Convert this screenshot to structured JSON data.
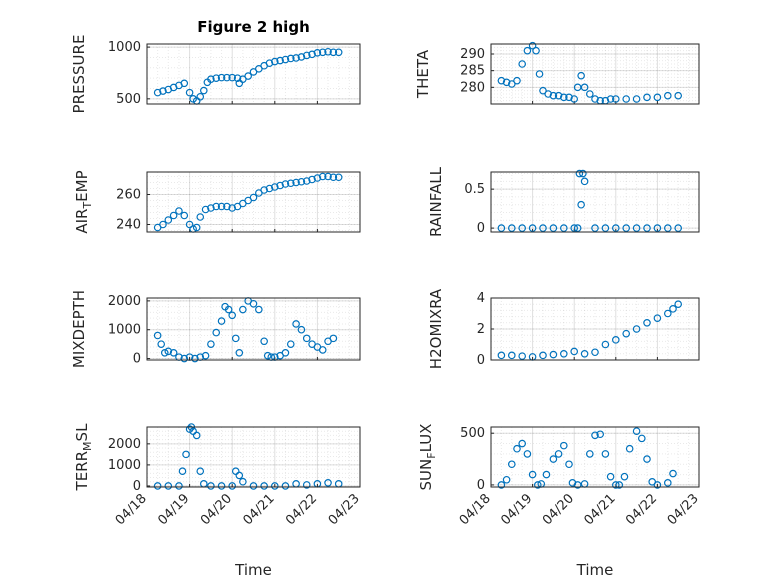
{
  "colors": {
    "marker": "#0072BD",
    "axis": "#262626"
  },
  "chart_data": [
    {
      "id": "pressure",
      "type": "scatter",
      "title": "Figure 2 high",
      "xlabel": "",
      "ylabel": "PRESSURE",
      "xlim": [
        "04/18",
        "04/23"
      ],
      "ylim": [
        450,
        1030
      ],
      "yticks": [
        500,
        1000
      ],
      "xticks": [],
      "grid": true,
      "x": [
        "04/18 06:00",
        "04/18 09:00",
        "04/18 12:00",
        "04/18 15:00",
        "04/18 18:00",
        "04/18 21:00",
        "04/19 00:00",
        "04/19 02:00",
        "04/19 04:00",
        "04/19 06:00",
        "04/19 08:00",
        "04/19 10:00",
        "04/19 12:00",
        "04/19 15:00",
        "04/19 18:00",
        "04/19 21:00",
        "04/20 00:00",
        "04/20 03:00",
        "04/20 04:00",
        "04/20 06:00",
        "04/20 09:00",
        "04/20 12:00",
        "04/20 15:00",
        "04/20 18:00",
        "04/20 21:00",
        "04/21 00:00",
        "04/21 03:00",
        "04/21 06:00",
        "04/21 09:00",
        "04/21 12:00",
        "04/21 15:00",
        "04/21 18:00",
        "04/21 21:00",
        "04/22 00:00",
        "04/22 03:00",
        "04/22 06:00",
        "04/22 09:00",
        "04/22 12:00"
      ],
      "y": [
        560,
        575,
        590,
        610,
        630,
        650,
        560,
        500,
        480,
        520,
        580,
        660,
        690,
        700,
        705,
        705,
        705,
        700,
        650,
        690,
        720,
        760,
        790,
        820,
        845,
        860,
        870,
        880,
        890,
        895,
        905,
        920,
        930,
        945,
        950,
        955,
        950,
        950
      ]
    },
    {
      "id": "theta",
      "type": "scatter",
      "xlabel": "",
      "ylabel": "THETA",
      "xlim": [
        "04/18",
        "04/23"
      ],
      "ylim": [
        275,
        293
      ],
      "yticks": [
        280,
        285,
        290
      ],
      "xticks": [],
      "grid": true,
      "x": [
        "04/18 06:00",
        "04/18 09:00",
        "04/18 12:00",
        "04/18 15:00",
        "04/18 18:00",
        "04/18 21:00",
        "04/19 00:00",
        "04/19 02:00",
        "04/19 04:00",
        "04/19 06:00",
        "04/19 09:00",
        "04/19 12:00",
        "04/19 15:00",
        "04/19 18:00",
        "04/19 21:00",
        "04/20 00:00",
        "04/20 02:00",
        "04/20 04:00",
        "04/20 06:00",
        "04/20 09:00",
        "04/20 12:00",
        "04/20 15:00",
        "04/20 18:00",
        "04/20 21:00",
        "04/21 00:00",
        "04/21 06:00",
        "04/21 12:00",
        "04/21 18:00",
        "04/22 00:00",
        "04/22 06:00",
        "04/22 12:00"
      ],
      "y": [
        282,
        281.5,
        281,
        282,
        287,
        291,
        292.5,
        291,
        284,
        279,
        278,
        277.5,
        277.5,
        277,
        277,
        276.5,
        280,
        283.5,
        280,
        278,
        276.5,
        276,
        276,
        276.5,
        276.5,
        276.5,
        276.5,
        277,
        277,
        277.5,
        277.5
      ]
    },
    {
      "id": "air_temp",
      "type": "scatter",
      "xlabel": "",
      "ylabel": "AIR_TEMP",
      "xlim": [
        "04/18",
        "04/23"
      ],
      "ylim": [
        235,
        275
      ],
      "yticks": [
        240,
        260
      ],
      "xticks": [],
      "grid": true,
      "x": [
        "04/18 06:00",
        "04/18 09:00",
        "04/18 12:00",
        "04/18 15:00",
        "04/18 18:00",
        "04/18 21:00",
        "04/19 00:00",
        "04/19 02:00",
        "04/19 04:00",
        "04/19 06:00",
        "04/19 09:00",
        "04/19 12:00",
        "04/19 15:00",
        "04/19 18:00",
        "04/19 21:00",
        "04/20 00:00",
        "04/20 03:00",
        "04/20 06:00",
        "04/20 09:00",
        "04/20 12:00",
        "04/20 15:00",
        "04/20 18:00",
        "04/20 21:00",
        "04/21 00:00",
        "04/21 03:00",
        "04/21 06:00",
        "04/21 09:00",
        "04/21 12:00",
        "04/21 15:00",
        "04/21 18:00",
        "04/21 21:00",
        "04/22 00:00",
        "04/22 03:00",
        "04/22 06:00",
        "04/22 09:00",
        "04/22 12:00"
      ],
      "y": [
        238,
        240,
        243,
        246,
        249,
        246,
        240,
        237,
        238,
        245,
        250,
        251,
        252,
        252,
        252,
        251,
        252,
        254,
        256,
        258,
        261,
        263,
        264,
        265,
        266,
        267,
        267.5,
        268,
        268.5,
        269,
        270,
        271,
        272,
        272,
        271.5,
        271.5
      ]
    },
    {
      "id": "rainfall",
      "type": "scatter",
      "xlabel": "",
      "ylabel": "RAINFALL",
      "xlim": [
        "04/18",
        "04/23"
      ],
      "ylim": [
        -0.05,
        0.72
      ],
      "yticks": [
        0,
        0.5
      ],
      "xticks": [],
      "grid": true,
      "x": [
        "04/18 06:00",
        "04/18 12:00",
        "04/18 18:00",
        "04/19 00:00",
        "04/19 06:00",
        "04/19 12:00",
        "04/19 18:00",
        "04/20 00:00",
        "04/20 02:00",
        "04/20 03:00",
        "04/20 04:00",
        "04/20 05:00",
        "04/20 06:00",
        "04/20 12:00",
        "04/20 18:00",
        "04/21 00:00",
        "04/21 06:00",
        "04/21 12:00",
        "04/21 18:00",
        "04/22 00:00",
        "04/22 06:00",
        "04/22 12:00"
      ],
      "y": [
        0,
        0,
        0,
        0,
        0,
        0,
        0,
        0,
        0,
        0.7,
        0.3,
        0.7,
        0.6,
        0,
        0,
        0,
        0,
        0,
        0,
        0,
        0,
        0
      ]
    },
    {
      "id": "mixdepth",
      "type": "scatter",
      "xlabel": "",
      "ylabel": "MIXDEPTH",
      "xlim": [
        "04/18",
        "04/23"
      ],
      "ylim": [
        -50,
        2100
      ],
      "yticks": [
        0,
        1000,
        2000
      ],
      "xticks": [],
      "grid": true,
      "x": [
        "04/18 06:00",
        "04/18 08:00",
        "04/18 10:00",
        "04/18 12:00",
        "04/18 15:00",
        "04/18 18:00",
        "04/18 21:00",
        "04/19 00:00",
        "04/19 03:00",
        "04/19 06:00",
        "04/19 09:00",
        "04/19 12:00",
        "04/19 15:00",
        "04/19 18:00",
        "04/19 20:00",
        "04/19 22:00",
        "04/20 00:00",
        "04/20 02:00",
        "04/20 04:00",
        "04/20 06:00",
        "04/20 09:00",
        "04/20 12:00",
        "04/20 15:00",
        "04/20 18:00",
        "04/20 20:00",
        "04/20 22:00",
        "04/21 00:00",
        "04/21 03:00",
        "04/21 06:00",
        "04/21 09:00",
        "04/21 12:00",
        "04/21 15:00",
        "04/21 18:00",
        "04/21 21:00",
        "04/22 00:00",
        "04/22 03:00",
        "04/22 06:00",
        "04/22 09:00"
      ],
      "y": [
        800,
        500,
        200,
        250,
        200,
        50,
        0,
        50,
        0,
        50,
        100,
        500,
        900,
        1300,
        1800,
        1700,
        1500,
        700,
        200,
        1700,
        2000,
        1900,
        1700,
        600,
        100,
        50,
        50,
        100,
        200,
        500,
        1200,
        1000,
        700,
        500,
        400,
        300,
        600,
        700
      ]
    },
    {
      "id": "h2omixra",
      "type": "scatter",
      "xlabel": "",
      "ylabel": "H2OMIXRA",
      "xlim": [
        "04/18",
        "04/23"
      ],
      "ylim": [
        0,
        4
      ],
      "yticks": [
        0,
        2,
        4
      ],
      "xticks": [],
      "grid": true,
      "x": [
        "04/18 06:00",
        "04/18 12:00",
        "04/18 18:00",
        "04/19 00:00",
        "04/19 06:00",
        "04/19 12:00",
        "04/19 18:00",
        "04/20 00:00",
        "04/20 06:00",
        "04/20 12:00",
        "04/20 18:00",
        "04/21 00:00",
        "04/21 06:00",
        "04/21 12:00",
        "04/21 18:00",
        "04/22 00:00",
        "04/22 06:00",
        "04/22 09:00",
        "04/22 12:00"
      ],
      "y": [
        0.3,
        0.3,
        0.25,
        0.2,
        0.3,
        0.35,
        0.4,
        0.55,
        0.4,
        0.5,
        1.0,
        1.3,
        1.7,
        2.0,
        2.4,
        2.7,
        3.0,
        3.3,
        3.6
      ]
    },
    {
      "id": "terr_msl",
      "type": "scatter",
      "xlabel": "Time",
      "ylabel": "TERR_MSL",
      "xlim": [
        "04/18",
        "04/23"
      ],
      "ylim": [
        -50,
        2800
      ],
      "yticks": [
        0,
        1000,
        2000
      ],
      "xticks": [
        "04/18",
        "04/19",
        "04/20",
        "04/21",
        "04/22",
        "04/23"
      ],
      "grid": true,
      "x": [
        "04/18 06:00",
        "04/18 12:00",
        "04/18 18:00",
        "04/18 20:00",
        "04/18 22:00",
        "04/19 00:00",
        "04/19 01:00",
        "04/19 02:00",
        "04/19 04:00",
        "04/19 06:00",
        "04/19 08:00",
        "04/19 12:00",
        "04/19 18:00",
        "04/20 00:00",
        "04/20 02:00",
        "04/20 04:00",
        "04/20 06:00",
        "04/20 12:00",
        "04/20 18:00",
        "04/21 00:00",
        "04/21 06:00",
        "04/21 12:00",
        "04/21 18:00",
        "04/22 00:00",
        "04/22 06:00",
        "04/22 12:00"
      ],
      "y": [
        0,
        0,
        0,
        700,
        1500,
        2700,
        2800,
        2600,
        2400,
        700,
        100,
        0,
        0,
        0,
        700,
        500,
        200,
        0,
        0,
        0,
        0,
        100,
        50,
        100,
        150,
        100
      ]
    },
    {
      "id": "sun_flux",
      "type": "scatter",
      "xlabel": "Time",
      "ylabel": "SUN_FLUX",
      "xlim": [
        "04/18",
        "04/23"
      ],
      "ylim": [
        -20,
        560
      ],
      "yticks": [
        0,
        500
      ],
      "xticks": [
        "04/18",
        "04/19",
        "04/20",
        "04/21",
        "04/22",
        "04/23"
      ],
      "grid": true,
      "x": [
        "04/18 06:00",
        "04/18 09:00",
        "04/18 12:00",
        "04/18 15:00",
        "04/18 18:00",
        "04/18 21:00",
        "04/19 00:00",
        "04/19 03:00",
        "04/19 05:00",
        "04/19 08:00",
        "04/19 12:00",
        "04/19 15:00",
        "04/19 18:00",
        "04/19 21:00",
        "04/19 23:00",
        "04/20 02:00",
        "04/20 06:00",
        "04/20 09:00",
        "04/20 12:00",
        "04/20 15:00",
        "04/20 18:00",
        "04/20 21:00",
        "04/21 00:00",
        "04/21 02:00",
        "04/21 05:00",
        "04/21 08:00",
        "04/21 12:00",
        "04/21 15:00",
        "04/21 18:00",
        "04/21 21:00",
        "04/22 00:00",
        "04/22 06:00",
        "04/22 09:00"
      ],
      "y": [
        0,
        50,
        200,
        350,
        400,
        300,
        100,
        0,
        10,
        100,
        250,
        300,
        380,
        200,
        20,
        0,
        10,
        300,
        480,
        490,
        300,
        80,
        0,
        0,
        80,
        350,
        520,
        450,
        250,
        30,
        0,
        20,
        110
      ]
    }
  ]
}
